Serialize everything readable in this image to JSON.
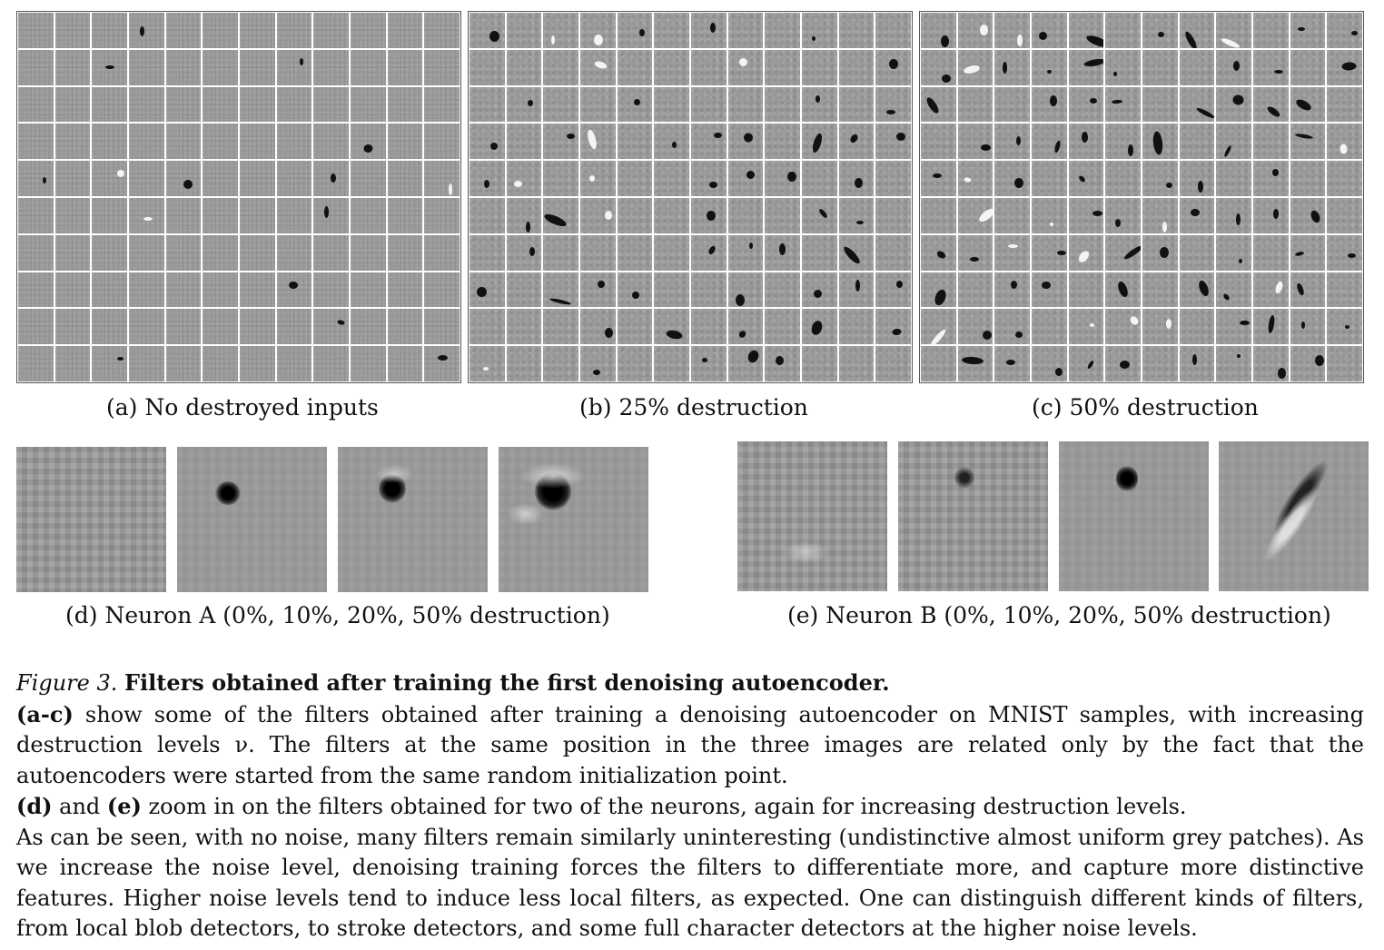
{
  "subfigures": {
    "a": "(a) No destroyed inputs",
    "b": "(b) 25% destruction",
    "c": "(c) 50% destruction",
    "d": "(d) Neuron A (0%, 10%, 20%, 50% destruction)",
    "e": "(e) Neuron B (0%, 10%, 20%, 50% destruction)"
  },
  "caption": {
    "figure_label": "Figure 3.",
    "title": "Filters obtained after training the first denoising autoencoder.",
    "p1_bold": "(a-c)",
    "p1_text": " show some of the filters obtained after training a denoising autoencoder on MNIST samples, with increasing destruction levels ν. The filters at the same position in the three images are related only by the fact that the autoencoders were started from the same random initialization point.",
    "p2_bold_d": "(d)",
    "p2_and": " and ",
    "p2_bold_e": "(e)",
    "p2_text": " zoom in on the filters obtained for two of the neurons, again for increasing destruction levels.",
    "p3_text": "As can be seen, with no noise, many filters remain similarly uninteresting (undistinctive almost uniform grey patches). As we increase the noise level, denoising training forces the filters to differentiate more, and capture more distinctive features. Higher noise levels tend to induce less local filters, as expected. One can distinguish different kinds of filters, from local blob detectors, to stroke detectors, and some full character detectors at the higher noise levels."
  }
}
